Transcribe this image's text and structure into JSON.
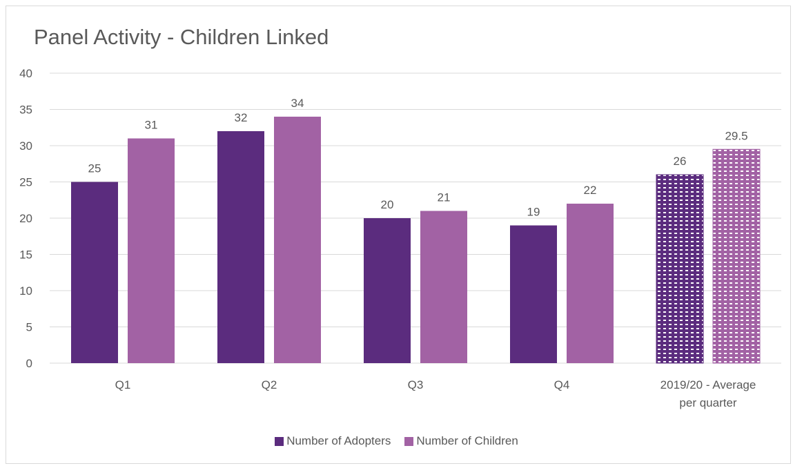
{
  "chart_data": {
    "type": "bar",
    "title": "Panel Activity - Children Linked",
    "categories": [
      "Q1",
      "Q2",
      "Q3",
      "Q4",
      "2019/20 - Average per quarter"
    ],
    "series": [
      {
        "name": "Number of Adopters",
        "values": [
          25,
          32,
          20,
          19,
          26
        ],
        "color": "#5b2c7e"
      },
      {
        "name": "Number of Children",
        "values": [
          31,
          34,
          21,
          22,
          29.5
        ],
        "color": "#a262a4"
      }
    ],
    "data_labels": [
      [
        "25",
        "32",
        "20",
        "19",
        "26"
      ],
      [
        "31",
        "34",
        "21",
        "22",
        "29.5"
      ]
    ],
    "patterned_category": "2019/20 - Average per quarter",
    "ylim": [
      0,
      40
    ],
    "yticks": [
      0,
      5,
      10,
      15,
      20,
      25,
      30,
      35,
      40
    ],
    "grid": true,
    "legend_position": "bottom"
  }
}
